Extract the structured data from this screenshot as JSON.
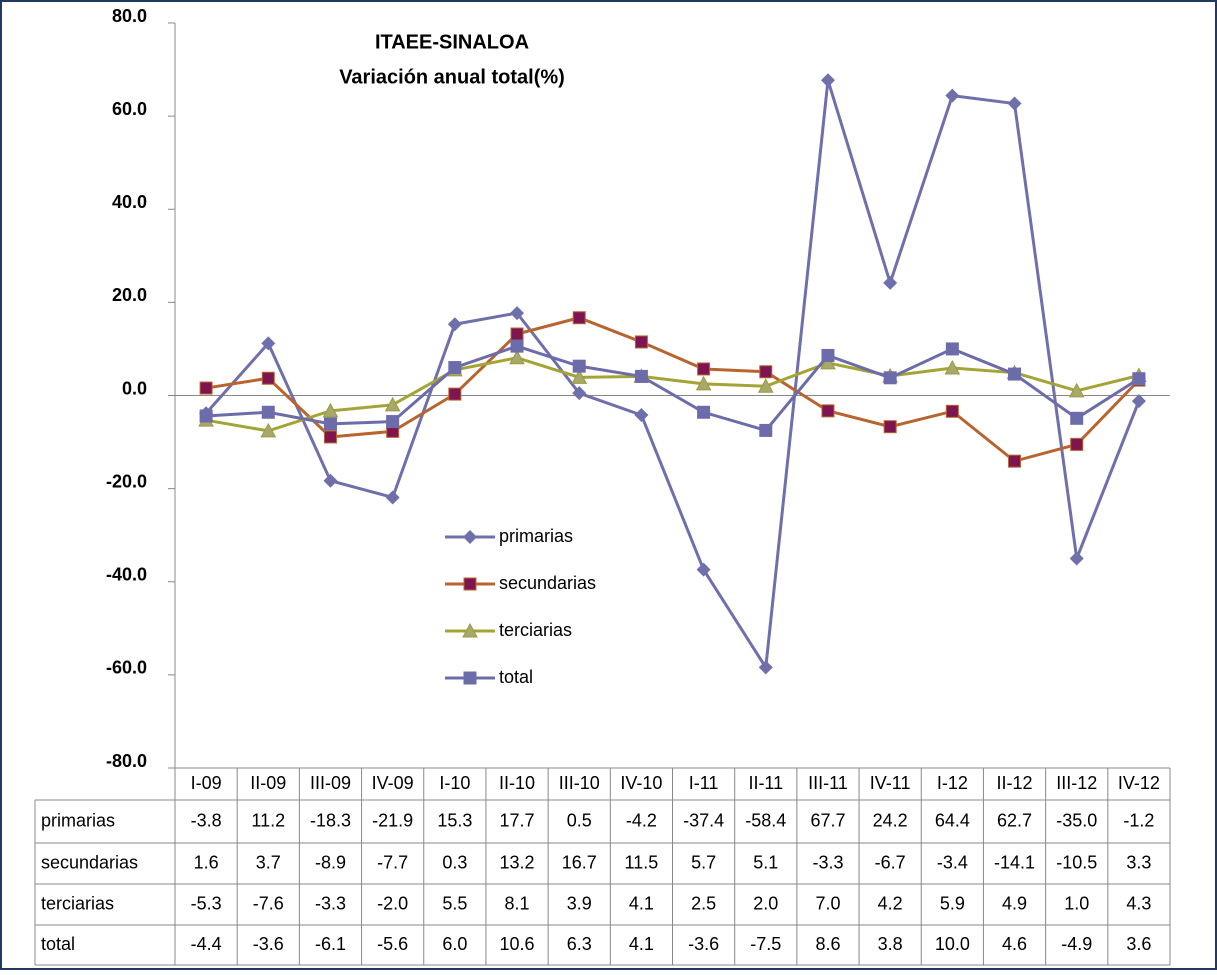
{
  "chart_data": {
    "type": "line",
    "title": "ITAEE-SINALOA",
    "subtitle": "Variación anual total(%)",
    "categories": [
      "I-09",
      "II-09",
      "III-09",
      "IV-09",
      "I-10",
      "II-10",
      "III-10",
      "IV-10",
      "I-11",
      "II-11",
      "III-11",
      "IV-11",
      "I-12",
      "II-12",
      "III-12",
      "IV-12"
    ],
    "series": [
      {
        "name": "primarias",
        "color": "#6f6fab",
        "marker": "diamond",
        "marker_color": "#6f6fab",
        "values": [
          -3.8,
          11.2,
          -18.3,
          -21.9,
          15.3,
          17.7,
          0.5,
          -4.2,
          -37.4,
          -58.4,
          67.7,
          24.2,
          64.4,
          62.7,
          -35.0,
          -1.2
        ],
        "value_labels": [
          "-3.8",
          "11.2",
          "-18.3",
          "-21.9",
          "15.3",
          "17.7",
          "0.5",
          "-4.2",
          "-37.4",
          "-58.4",
          "67.7",
          "24.2",
          "64.4",
          "62.7",
          "-35.0",
          "-1.2"
        ]
      },
      {
        "name": "secundarias",
        "color": "#b8642e",
        "marker": "square",
        "marker_color": "#7e1550",
        "values": [
          1.6,
          3.7,
          -8.9,
          -7.7,
          0.3,
          13.2,
          16.7,
          11.5,
          5.7,
          5.1,
          -3.3,
          -6.7,
          -3.4,
          -14.1,
          -10.5,
          3.3
        ],
        "value_labels": [
          "1.6",
          "3.7",
          "-8.9",
          "-7.7",
          "0.3",
          "13.2",
          "16.7",
          "11.5",
          "5.7",
          "5.1",
          "-3.3",
          "-6.7",
          "-3.4",
          "-14.1",
          "-10.5",
          "3.3"
        ]
      },
      {
        "name": "terciarias",
        "color": "#a4a436",
        "marker": "triangle",
        "marker_color": "#a8a86a",
        "values": [
          -5.3,
          -7.6,
          -3.3,
          -2.0,
          5.5,
          8.1,
          3.9,
          4.1,
          2.5,
          2.0,
          7.0,
          4.2,
          5.9,
          4.9,
          1.0,
          4.3
        ],
        "value_labels": [
          "-5.3",
          "-7.6",
          "-3.3",
          "-2.0",
          "5.5",
          "8.1",
          "3.9",
          "4.1",
          "2.5",
          "2.0",
          "7.0",
          "4.2",
          "5.9",
          "4.9",
          "1.0",
          "4.3"
        ]
      },
      {
        "name": "total",
        "color": "#6c6cab",
        "marker": "square",
        "marker_color": "#6c6cab",
        "values": [
          -4.4,
          -3.6,
          -6.1,
          -5.6,
          6.0,
          10.6,
          6.3,
          4.1,
          -3.6,
          -7.5,
          8.6,
          3.8,
          10.0,
          4.6,
          -4.9,
          3.6
        ],
        "value_labels": [
          "-4.4",
          "-3.6",
          "-6.1",
          "-5.6",
          "6.0",
          "10.6",
          "6.3",
          "4.1",
          "-3.6",
          "-7.5",
          "8.6",
          "3.8",
          "10.0",
          "4.6",
          "-4.9",
          "3.6"
        ]
      }
    ],
    "ylim": [
      -80,
      80
    ],
    "yticks": [
      {
        "value": -80,
        "label": "-80.0"
      },
      {
        "value": -60,
        "label": "-60.0"
      },
      {
        "value": -40,
        "label": "-40.0"
      },
      {
        "value": -20,
        "label": "-20.0"
      },
      {
        "value": 0,
        "label": "0.0"
      },
      {
        "value": 20,
        "label": "20.0"
      },
      {
        "value": 40,
        "label": "40.0"
      },
      {
        "value": 60,
        "label": "60.0"
      },
      {
        "value": 80,
        "label": "80.0"
      }
    ],
    "grid": false,
    "legend_position": "center"
  }
}
